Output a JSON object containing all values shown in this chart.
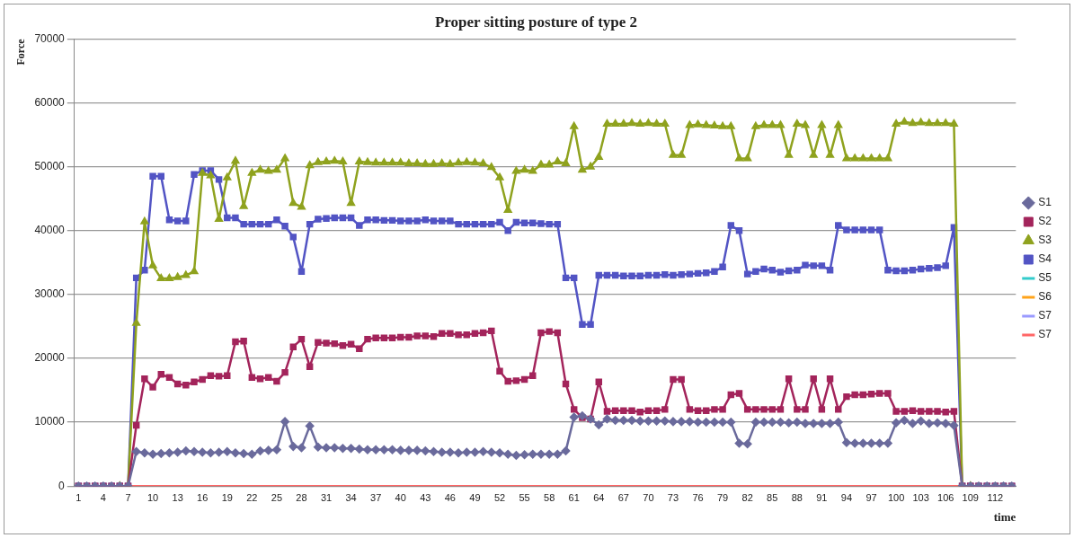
{
  "chart_data": {
    "type": "line",
    "title": "Proper sitting posture of type 2",
    "xlabel": "time",
    "ylabel": "Force",
    "categories": [
      "1",
      null,
      null,
      "4",
      null,
      null,
      "7",
      null,
      null,
      "10",
      null,
      null,
      "13",
      null,
      null,
      "16",
      null,
      null,
      "19",
      null,
      null,
      "22",
      null,
      null,
      "25",
      null,
      null,
      "28",
      null,
      null,
      "31",
      null,
      null,
      "34",
      null,
      null,
      "37",
      null,
      null,
      "40",
      null,
      null,
      "43",
      null,
      null,
      "46",
      null,
      null,
      "49",
      null,
      null,
      "52",
      null,
      null,
      "55",
      null,
      null,
      "58",
      null,
      null,
      "61",
      null,
      null,
      "64",
      null,
      null,
      "67",
      null,
      null,
      "70",
      null,
      null,
      "73",
      null,
      null,
      "76",
      null,
      null,
      "79",
      null,
      null,
      "82",
      null,
      null,
      "85",
      null,
      null,
      "88",
      null,
      null,
      "91",
      null,
      null,
      "94",
      null,
      null,
      "97",
      null,
      null,
      "100",
      null,
      null,
      "103",
      null,
      null,
      "106",
      null,
      null,
      "109",
      null,
      null,
      "112",
      null,
      null
    ],
    "ylim": [
      0,
      70000
    ],
    "yticks": [
      0,
      10000,
      20000,
      30000,
      40000,
      50000,
      60000,
      70000
    ],
    "grid": "y",
    "legend": "right",
    "series": [
      {
        "name": "S1",
        "color": "#6a6a9c",
        "marker": "diamond",
        "values": [
          0,
          0,
          0,
          0,
          0,
          0,
          0,
          5400,
          5200,
          5000,
          5100,
          5200,
          5300,
          5500,
          5400,
          5300,
          5200,
          5300,
          5400,
          5200,
          5100,
          5000,
          5500,
          5600,
          5700,
          10100,
          6200,
          6000,
          9400,
          6100,
          6000,
          6000,
          5900,
          5900,
          5800,
          5700,
          5700,
          5700,
          5700,
          5600,
          5600,
          5600,
          5500,
          5400,
          5300,
          5300,
          5200,
          5300,
          5300,
          5400,
          5300,
          5200,
          5000,
          4800,
          4900,
          5000,
          5000,
          5000,
          5000,
          5500,
          10800,
          11000,
          10500,
          9600,
          10500,
          10300,
          10300,
          10300,
          10200,
          10200,
          10200,
          10200,
          10100,
          10100,
          10100,
          10000,
          10000,
          10000,
          10000,
          10000,
          6700,
          6600,
          10000,
          10000,
          10000,
          10000,
          9900,
          10000,
          9800,
          9800,
          9800,
          9800,
          10000,
          6800,
          6700,
          6700,
          6700,
          6700,
          6700,
          9900,
          10300,
          9800,
          10200,
          9800,
          9900,
          9800,
          9500,
          0,
          0,
          0,
          0,
          0,
          0,
          0
        ]
      },
      {
        "name": "S2",
        "color": "#a3245b",
        "marker": "square",
        "values": [
          0,
          0,
          0,
          0,
          0,
          0,
          0,
          9500,
          16800,
          15500,
          17500,
          17000,
          16000,
          15800,
          16300,
          16700,
          17300,
          17200,
          17300,
          22600,
          22700,
          17000,
          16800,
          17000,
          16400,
          17800,
          21800,
          23000,
          18700,
          22500,
          22400,
          22300,
          22000,
          22200,
          21500,
          23000,
          23200,
          23200,
          23200,
          23300,
          23300,
          23500,
          23500,
          23400,
          23900,
          23900,
          23700,
          23700,
          23900,
          24000,
          24300,
          18000,
          16400,
          16500,
          16700,
          17300,
          24000,
          24200,
          24000,
          16000,
          12000,
          10700,
          10500,
          16300,
          11700,
          11800,
          11800,
          11800,
          11600,
          11800,
          11800,
          12000,
          16700,
          16700,
          12000,
          11800,
          11800,
          12000,
          12000,
          14300,
          14500,
          12000,
          12000,
          12000,
          12000,
          12000,
          16800,
          12000,
          12000,
          16800,
          12000,
          16800,
          12000,
          14000,
          14300,
          14300,
          14400,
          14500,
          14500,
          11700,
          11700,
          11800,
          11700,
          11700,
          11700,
          11600,
          11700,
          0,
          0,
          0,
          0,
          0,
          0,
          0
        ]
      },
      {
        "name": "S3",
        "color": "#8fa21e",
        "marker": "triangle",
        "values": [
          null,
          null,
          null,
          null,
          null,
          0,
          0,
          25500,
          41400,
          34500,
          32500,
          32500,
          32700,
          33000,
          33600,
          49000,
          48600,
          41800,
          48300,
          50900,
          43800,
          49000,
          49500,
          49300,
          49500,
          51300,
          44300,
          43700,
          50200,
          50700,
          50800,
          50900,
          50800,
          44300,
          50800,
          50700,
          50600,
          50600,
          50600,
          50600,
          50500,
          50500,
          50400,
          50400,
          50500,
          50400,
          50600,
          50700,
          50600,
          50500,
          49900,
          48300,
          43200,
          49300,
          49500,
          49300,
          50300,
          50300,
          50800,
          50500,
          56300,
          49500,
          50000,
          51500,
          56700,
          56700,
          56700,
          56800,
          56700,
          56800,
          56700,
          56700,
          51800,
          51800,
          56500,
          56600,
          56500,
          56400,
          56300,
          56300,
          51300,
          51300,
          56300,
          56500,
          56500,
          56500,
          51800,
          56700,
          56500,
          51800,
          56500,
          51800,
          56500,
          51300,
          51300,
          51300,
          51300,
          51300,
          51300,
          56700,
          57000,
          56800,
          56900,
          56800,
          56800,
          56800,
          56700,
          0,
          0,
          null,
          null,
          null,
          null,
          null
        ]
      },
      {
        "name": "S4",
        "color": "#5254c4",
        "marker": "square",
        "values": [
          0,
          0,
          0,
          0,
          0,
          0,
          0,
          32600,
          33800,
          48500,
          48500,
          41700,
          41500,
          41500,
          48800,
          49400,
          49400,
          48000,
          42000,
          42000,
          41000,
          41000,
          41000,
          41000,
          41700,
          40700,
          39000,
          33600,
          41000,
          41800,
          41900,
          42000,
          42000,
          42000,
          40800,
          41700,
          41700,
          41600,
          41600,
          41500,
          41500,
          41500,
          41700,
          41500,
          41500,
          41500,
          41000,
          41000,
          41000,
          41000,
          41000,
          41300,
          40000,
          41300,
          41200,
          41200,
          41100,
          41000,
          41000,
          32600,
          32600,
          25300,
          25300,
          33000,
          33000,
          33000,
          32900,
          32900,
          32900,
          33000,
          33000,
          33100,
          33000,
          33100,
          33200,
          33300,
          33400,
          33600,
          34300,
          40800,
          40000,
          33200,
          33600,
          34000,
          33800,
          33500,
          33700,
          33800,
          34600,
          34500,
          34500,
          33800,
          40800,
          40100,
          40100,
          40100,
          40100,
          40100,
          33800,
          33700,
          33700,
          33800,
          34000,
          34100,
          34200,
          34500,
          40500,
          0,
          0,
          0,
          0,
          0,
          0,
          0
        ]
      },
      {
        "name": "S5",
        "color": "#33cccc",
        "marker": "none",
        "values": [
          null,
          null,
          null,
          null,
          null,
          null,
          null,
          null,
          null,
          null,
          null,
          null,
          null,
          null,
          null,
          null,
          null,
          null,
          null,
          null,
          null,
          null,
          null,
          null,
          null,
          null,
          null,
          null,
          null,
          null,
          null,
          null,
          null,
          null,
          null,
          null,
          null,
          null,
          null,
          null,
          null,
          null,
          null,
          null,
          null,
          null,
          null,
          null,
          null,
          null,
          null,
          null,
          null,
          null,
          null,
          null,
          null,
          null,
          null,
          null,
          null,
          null,
          null,
          null,
          null,
          null,
          null,
          null,
          null,
          null,
          null,
          null,
          null,
          null,
          null,
          null,
          null,
          null,
          null,
          null,
          null,
          null,
          null,
          null,
          null,
          null,
          null,
          null,
          null,
          null,
          null,
          null,
          null,
          null,
          null,
          null,
          null,
          null,
          null,
          null,
          null,
          null,
          null,
          null,
          null,
          null,
          null,
          null,
          null,
          null,
          null,
          null,
          null,
          null
        ]
      },
      {
        "name": "S6",
        "color": "#ffa31a",
        "marker": "none",
        "values": [
          null,
          null,
          null,
          null,
          null,
          null,
          null,
          null,
          null,
          null,
          null,
          null,
          null,
          null,
          null,
          null,
          null,
          null,
          null,
          null,
          null,
          null,
          null,
          null,
          null,
          null,
          null,
          null,
          null,
          null,
          null,
          null,
          null,
          null,
          null,
          null,
          null,
          null,
          null,
          null,
          null,
          null,
          null,
          null,
          null,
          null,
          null,
          null,
          null,
          null,
          null,
          null,
          null,
          null,
          null,
          null,
          null,
          null,
          null,
          null,
          null,
          null,
          null,
          null,
          null,
          null,
          null,
          null,
          null,
          null,
          null,
          null,
          null,
          null,
          null,
          null,
          null,
          null,
          null,
          null,
          null,
          null,
          null,
          null,
          null,
          null,
          null,
          null,
          null,
          null,
          null,
          null,
          null,
          null,
          null,
          null,
          null,
          null,
          null,
          null,
          null,
          null,
          null,
          null,
          null,
          null,
          null,
          null,
          null,
          null,
          null,
          null,
          null,
          null
        ]
      },
      {
        "name": "S7",
        "color": "#9a9aff",
        "marker": "none",
        "values": [
          null,
          null,
          null,
          null,
          null,
          null,
          null,
          null,
          null,
          null,
          null,
          null,
          null,
          null,
          null,
          null,
          null,
          null,
          null,
          null,
          null,
          null,
          null,
          null,
          null,
          null,
          null,
          null,
          null,
          null,
          null,
          null,
          null,
          null,
          null,
          null,
          null,
          null,
          null,
          null,
          null,
          null,
          null,
          null,
          null,
          null,
          null,
          null,
          null,
          null,
          null,
          null,
          null,
          null,
          null,
          null,
          null,
          null,
          null,
          null,
          null,
          null,
          null,
          null,
          null,
          null,
          null,
          null,
          null,
          null,
          null,
          null,
          null,
          null,
          null,
          null,
          null,
          null,
          null,
          null,
          null,
          null,
          null,
          null,
          null,
          null,
          null,
          null,
          null,
          null,
          null,
          null,
          null,
          null,
          null,
          null,
          null,
          null,
          null,
          null,
          null,
          null,
          null,
          null,
          null,
          null,
          null,
          null,
          null,
          null,
          null,
          null,
          null,
          null
        ]
      },
      {
        "name": "S7",
        "color": "#ff6666",
        "marker": "none",
        "values": [
          null,
          null,
          null,
          null,
          null,
          0,
          0,
          0,
          0,
          0,
          0,
          0,
          0,
          0,
          0,
          0,
          0,
          0,
          0,
          0,
          0,
          0,
          0,
          0,
          0,
          0,
          0,
          0,
          0,
          0,
          0,
          0,
          0,
          0,
          0,
          0,
          0,
          0,
          0,
          0,
          0,
          0,
          0,
          0,
          0,
          0,
          0,
          0,
          0,
          0,
          0,
          0,
          0,
          0,
          0,
          0,
          0,
          0,
          0,
          0,
          0,
          0,
          0,
          0,
          0,
          0,
          0,
          0,
          0,
          0,
          0,
          0,
          0,
          0,
          0,
          0,
          0,
          0,
          0,
          0,
          0,
          0,
          0,
          0,
          0,
          0,
          0,
          0,
          0,
          0,
          0,
          0,
          0,
          0,
          0,
          0,
          0,
          0,
          0,
          0,
          0,
          0,
          0,
          0,
          0,
          0,
          0,
          0,
          0,
          null,
          null,
          null,
          null,
          null
        ]
      }
    ]
  }
}
